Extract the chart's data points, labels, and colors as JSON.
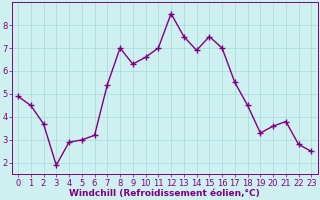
{
  "x": [
    0,
    1,
    2,
    3,
    4,
    5,
    6,
    7,
    8,
    9,
    10,
    11,
    12,
    13,
    14,
    15,
    16,
    17,
    18,
    19,
    20,
    21,
    22,
    23
  ],
  "y": [
    4.9,
    4.5,
    3.7,
    1.9,
    2.9,
    3.0,
    3.2,
    5.4,
    7.0,
    6.3,
    6.6,
    7.0,
    8.5,
    7.5,
    6.9,
    7.5,
    7.0,
    5.5,
    4.5,
    3.3,
    3.6,
    3.8,
    2.8,
    2.5
  ],
  "line_color": "#800080",
  "marker": "+",
  "marker_size": 4,
  "linewidth": 1.0,
  "bg_color": "#cff0f0",
  "grid_color": "#aadddd",
  "xlabel": "Windchill (Refroidissement éolien,°C)",
  "xlabel_color": "#800080",
  "tick_color": "#800080",
  "spine_color": "#800080",
  "ylim": [
    1.5,
    9.0
  ],
  "xlim": [
    -0.5,
    23.5
  ],
  "yticks": [
    2,
    3,
    4,
    5,
    6,
    7,
    8
  ],
  "xticks": [
    0,
    1,
    2,
    3,
    4,
    5,
    6,
    7,
    8,
    9,
    10,
    11,
    12,
    13,
    14,
    15,
    16,
    17,
    18,
    19,
    20,
    21,
    22,
    23
  ],
  "xlabel_fontsize": 6.5,
  "tick_fontsize": 6.0,
  "fig_width": 3.2,
  "fig_height": 2.0,
  "dpi": 100
}
